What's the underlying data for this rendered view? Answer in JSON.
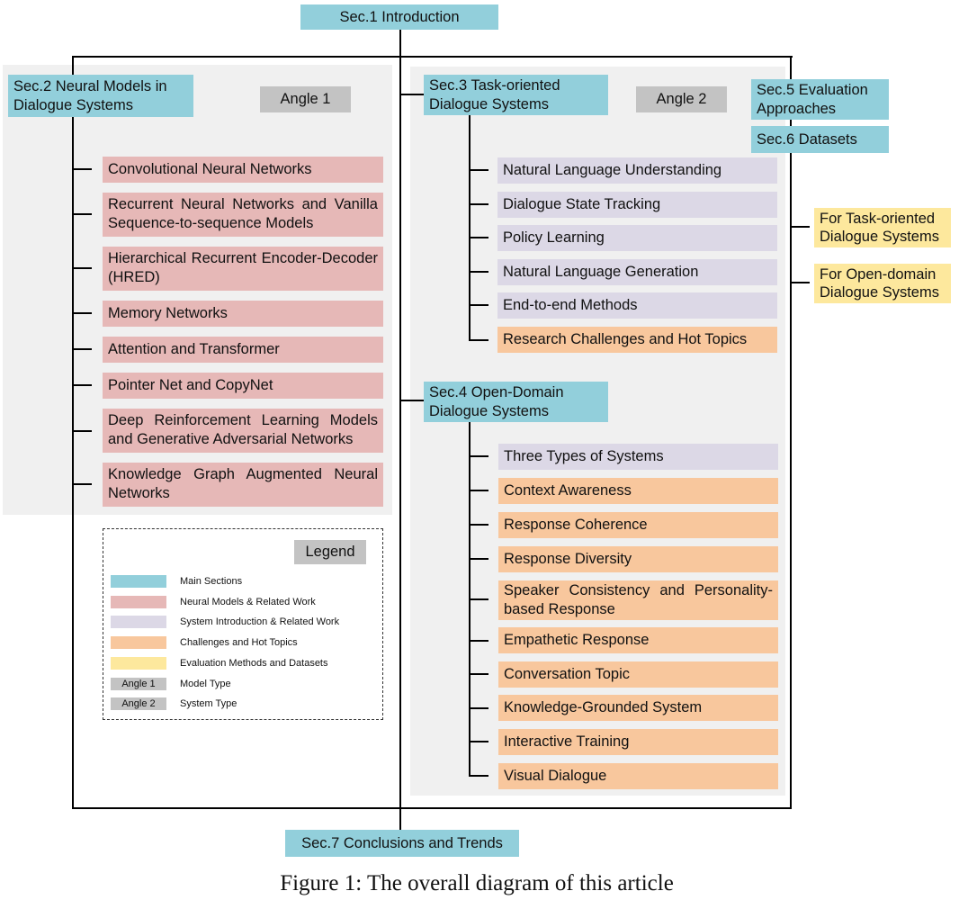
{
  "sections": {
    "sec1": "Sec.1  Introduction",
    "sec2": "Sec.2  Neural Models in Dialogue Systems",
    "sec3": "Sec.3  Task-oriented Dialogue Systems",
    "sec4": "Sec.4  Open-Domain Dialogue Systems",
    "sec5": "Sec.5  Evaluation Approaches",
    "sec6": "Sec.6  Datasets",
    "sec7": "Sec.7  Conclusions and Trends"
  },
  "angles": {
    "angle1": "Angle 1",
    "angle2": "Angle 2"
  },
  "neural_models": [
    "Convolutional Neural Networks",
    "Recurrent Neural Networks and Vanilla Sequence-to-sequence Models",
    "Hierarchical Recurrent Encoder-Decoder (HRED)",
    "Memory Networks",
    "Attention and Transformer",
    "Pointer Net and CopyNet",
    "Deep Reinforcement Learning Models and Generative Adversarial Networks",
    "Knowledge Graph Augmented Neural Networks"
  ],
  "task_oriented": [
    "Natural Language Understanding",
    "Dialogue State Tracking",
    "Policy Learning",
    "Natural Language Generation",
    "End-to-end Methods",
    "Research Challenges and Hot Topics"
  ],
  "open_domain": [
    "Three Types of Systems",
    "Context Awareness",
    "Response Coherence",
    "Response Diversity",
    "Speaker Consistency and Personality-based Response",
    "Empathetic Response",
    "Conversation Topic",
    "Knowledge-Grounded System",
    "Interactive Training",
    "Visual Dialogue"
  ],
  "datasets": [
    "For Task-oriented Dialogue Systems",
    "For Open-domain Dialogue Systems"
  ],
  "legend": {
    "title": "Legend",
    "items": [
      "Main Sections",
      "Neural Models & Related Work",
      "System Introduction & Related Work",
      "Challenges and Hot Topics",
      "Evaluation Methods and Datasets",
      "Model Type",
      "System Type"
    ],
    "angle_swatches": [
      "Angle 1",
      "Angle 2"
    ]
  },
  "caption": "Figure 1: The overall diagram of this article",
  "colors": {
    "main_sections": "#92cfdb",
    "neural_models": "#e6b8b7",
    "system_intro": "#dcd8e6",
    "challenges": "#f8c79d",
    "evaluation": "#fde89d",
    "angle": "#c3c3c3"
  }
}
